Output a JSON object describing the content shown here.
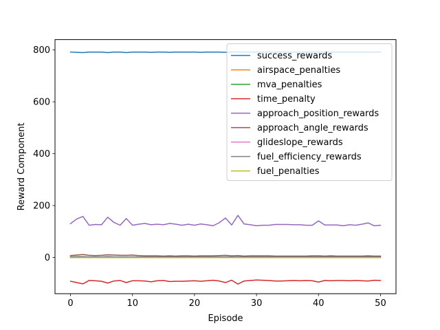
{
  "chart_data": {
    "type": "line",
    "title": "",
    "xlabel": "Episode",
    "ylabel": "Reward Component",
    "xlim": [
      -2.5,
      52.5
    ],
    "ylim": [
      -140,
      840
    ],
    "xticks": [
      0,
      10,
      20,
      30,
      40,
      50
    ],
    "yticks": [
      0,
      200,
      400,
      600,
      800
    ],
    "grid": false,
    "legend_position": "upper-right",
    "x": [
      0,
      1,
      2,
      3,
      4,
      5,
      6,
      7,
      8,
      9,
      10,
      11,
      12,
      13,
      14,
      15,
      16,
      17,
      18,
      19,
      20,
      21,
      22,
      23,
      24,
      25,
      26,
      27,
      28,
      29,
      30,
      31,
      32,
      33,
      34,
      35,
      36,
      37,
      38,
      39,
      40,
      41,
      42,
      43,
      44,
      45,
      46,
      47,
      48,
      49,
      50
    ],
    "series": [
      {
        "name": "success_rewards",
        "color": "#1f77b4",
        "values": [
          792,
          791,
          790,
          792,
          792,
          792,
          790,
          792,
          792,
          790,
          792,
          792,
          792,
          791,
          792,
          792,
          791,
          792,
          792,
          792,
          792,
          791,
          792,
          792,
          792,
          791,
          792,
          792,
          792,
          792,
          792,
          792,
          792,
          792,
          792,
          792,
          792,
          792,
          792,
          792,
          792,
          792,
          792,
          792,
          792,
          792,
          792,
          792,
          792,
          792,
          792
        ]
      },
      {
        "name": "airspace_penalties",
        "color": "#ff7f0e",
        "values": [
          0,
          0,
          0,
          0,
          0,
          0,
          0,
          0,
          0,
          0,
          0,
          0,
          0,
          0,
          0,
          0,
          0,
          0,
          0,
          0,
          0,
          0,
          0,
          0,
          0,
          0,
          0,
          0,
          0,
          0,
          0,
          0,
          0,
          0,
          0,
          0,
          0,
          0,
          0,
          0,
          0,
          0,
          0,
          0,
          0,
          0,
          0,
          0,
          0,
          0,
          0
        ]
      },
      {
        "name": "mva_penalties",
        "color": "#2ca02c",
        "values": [
          0,
          0,
          0,
          0,
          0,
          0,
          0,
          0,
          0,
          0,
          0,
          0,
          0,
          0,
          0,
          0,
          0,
          0,
          0,
          0,
          0,
          0,
          0,
          0,
          0,
          0,
          0,
          0,
          0,
          0,
          0,
          0,
          0,
          0,
          0,
          0,
          0,
          0,
          0,
          0,
          0,
          0,
          0,
          0,
          0,
          0,
          0,
          0,
          0,
          0,
          0
        ]
      },
      {
        "name": "time_penalty",
        "color": "#d62728",
        "values": [
          -92,
          -97,
          -102,
          -89,
          -90,
          -92,
          -99,
          -91,
          -89,
          -97,
          -90,
          -90,
          -91,
          -94,
          -90,
          -89,
          -93,
          -92,
          -92,
          -91,
          -90,
          -92,
          -90,
          -88,
          -91,
          -97,
          -88,
          -103,
          -91,
          -89,
          -87,
          -88,
          -89,
          -91,
          -91,
          -90,
          -89,
          -90,
          -89,
          -90,
          -95,
          -89,
          -90,
          -89,
          -89,
          -90,
          -89,
          -90,
          -91,
          -88,
          -89
        ]
      },
      {
        "name": "approach_position_rewards",
        "color": "#9467bd",
        "values": [
          130,
          148,
          158,
          124,
          127,
          126,
          155,
          135,
          124,
          150,
          124,
          128,
          131,
          126,
          128,
          126,
          131,
          128,
          124,
          128,
          124,
          129,
          126,
          122,
          134,
          152,
          125,
          162,
          129,
          126,
          122,
          124,
          124,
          127,
          127,
          127,
          126,
          126,
          124,
          124,
          141,
          125,
          125,
          125,
          122,
          126,
          124,
          128,
          133,
          122,
          124
        ]
      },
      {
        "name": "approach_angle_rewards",
        "color": "#8c564b",
        "values": [
          7,
          9,
          11,
          8,
          7,
          8,
          10,
          9,
          8,
          8,
          9,
          7,
          6,
          6,
          6,
          5,
          6,
          5,
          6,
          6,
          5,
          6,
          6,
          6,
          7,
          8,
          6,
          7,
          5,
          6,
          6,
          6,
          6,
          5,
          5,
          5,
          5,
          5,
          5,
          6,
          6,
          5,
          6,
          5,
          5,
          5,
          5,
          5,
          6,
          5,
          5
        ]
      },
      {
        "name": "glideslope_rewards",
        "color": "#e377c2",
        "values": [
          0,
          0,
          0,
          0,
          0,
          0,
          0,
          0,
          0,
          0,
          0,
          0,
          0,
          0,
          0,
          0,
          0,
          0,
          0,
          0,
          0,
          0,
          0,
          0,
          0,
          0,
          0,
          0,
          0,
          0,
          0,
          0,
          0,
          0,
          0,
          0,
          0,
          0,
          0,
          0,
          0,
          0,
          0,
          0,
          0,
          0,
          0,
          0,
          0,
          0,
          0
        ]
      },
      {
        "name": "fuel_efficiency_rewards",
        "color": "#7f7f7f",
        "values": [
          2,
          3,
          3,
          2,
          2,
          2,
          3,
          2,
          2,
          2,
          2,
          2,
          2,
          2,
          2,
          2,
          2,
          2,
          2,
          2,
          2,
          2,
          2,
          2,
          2,
          2,
          2,
          2,
          2,
          2,
          2,
          2,
          2,
          2,
          2,
          2,
          2,
          2,
          2,
          2,
          2,
          2,
          2,
          2,
          2,
          2,
          2,
          2,
          2,
          2,
          2
        ]
      },
      {
        "name": "fuel_penalties",
        "color": "#bcbd22",
        "values": [
          -1,
          -1,
          -1,
          -1,
          -1,
          -1,
          -1,
          -1,
          -1,
          -1,
          -1,
          -1,
          -1,
          -1,
          -1,
          -1,
          -1,
          -1,
          -1,
          -1,
          -1,
          -1,
          -1,
          -1,
          -1,
          -1,
          -1,
          -1,
          -1,
          -1,
          -1,
          -1,
          -1,
          -1,
          -1,
          -1,
          -1,
          -1,
          -1,
          -1,
          -1,
          -1,
          -1,
          -1,
          -1,
          -1,
          -1,
          -1,
          -1,
          -1,
          -1
        ]
      }
    ]
  }
}
